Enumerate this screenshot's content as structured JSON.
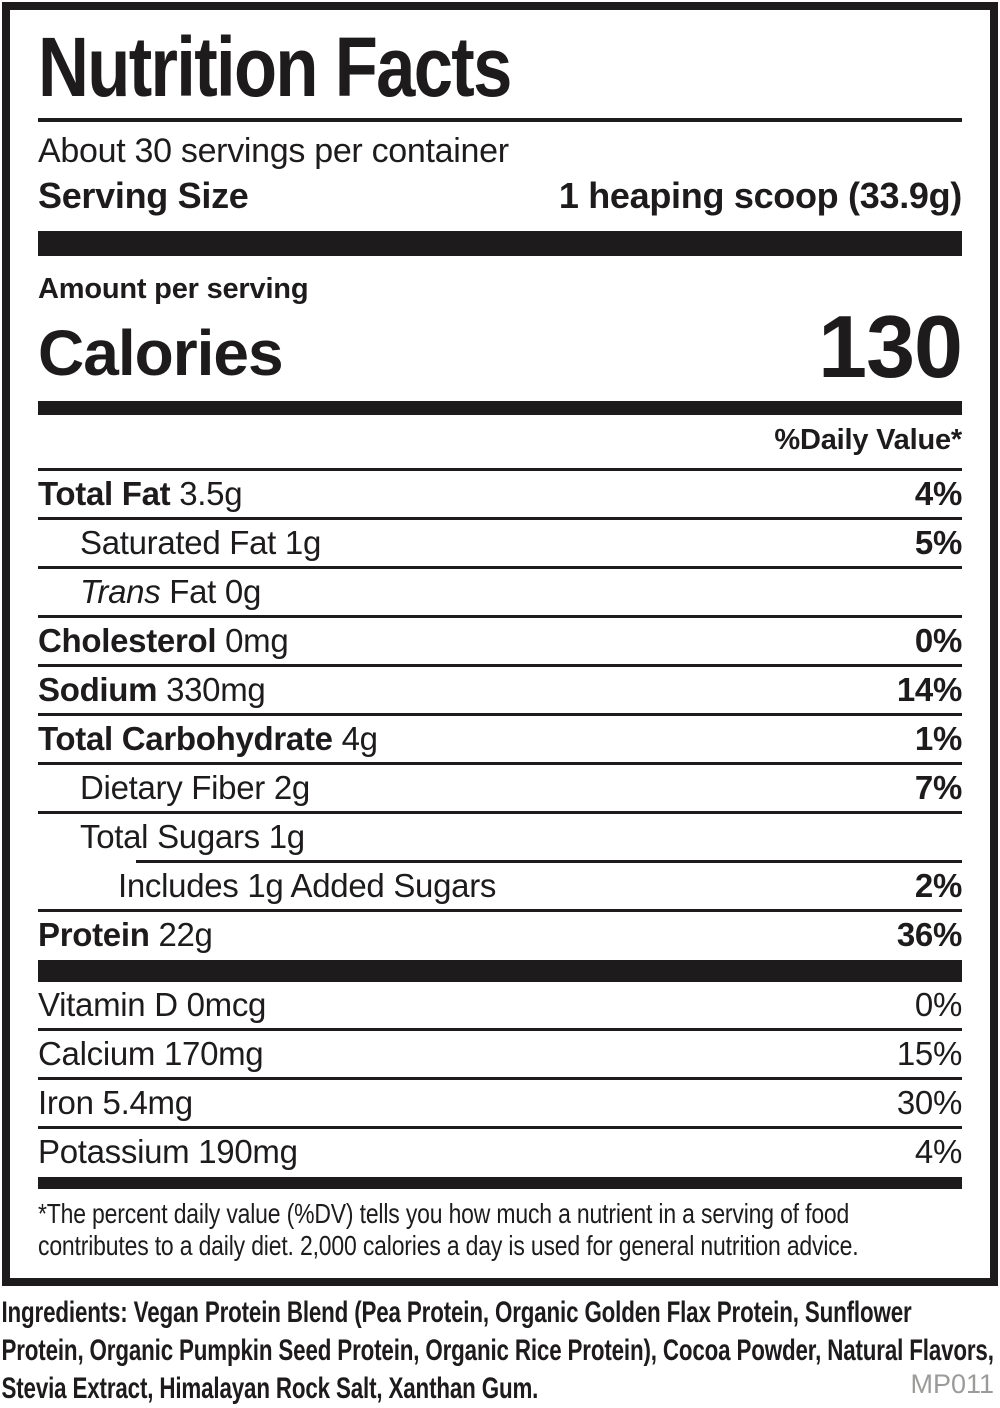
{
  "colors": {
    "ink": "#1d1b1c",
    "muted": "#9b9b9a",
    "bg": "#ffffff"
  },
  "label": {
    "title": "Nutrition Facts",
    "servings_per_container": "About 30 servings per container",
    "serving_size_label": "Serving Size",
    "serving_size_value": "1 heaping scoop (33.9g)",
    "amount_per_serving": "Amount per serving",
    "calories_label": "Calories",
    "calories_value": "130",
    "daily_value_header": "%Daily Value*",
    "nutrients": [
      {
        "parts": [
          {
            "t": "Total Fat ",
            "s": "b"
          },
          {
            "t": "3.5g",
            "s": "r"
          }
        ],
        "pct": "4%",
        "indent": 0,
        "rule": "full"
      },
      {
        "parts": [
          {
            "t": "Saturated Fat 1g",
            "s": "r"
          }
        ],
        "pct": "5%",
        "indent": 1,
        "rule": "full"
      },
      {
        "parts": [
          {
            "t": "Trans",
            "s": "i"
          },
          {
            "t": " Fat 0g",
            "s": "r"
          }
        ],
        "pct": "",
        "indent": 1,
        "rule": "full"
      },
      {
        "parts": [
          {
            "t": "Cholesterol ",
            "s": "b"
          },
          {
            "t": "0mg",
            "s": "r"
          }
        ],
        "pct": "0%",
        "indent": 0,
        "rule": "full"
      },
      {
        "parts": [
          {
            "t": "Sodium ",
            "s": "b"
          },
          {
            "t": "330mg",
            "s": "r"
          }
        ],
        "pct": "14%",
        "indent": 0,
        "rule": "full"
      },
      {
        "parts": [
          {
            "t": "Total Carbohydrate ",
            "s": "b"
          },
          {
            "t": "4g",
            "s": "r"
          }
        ],
        "pct": "1%",
        "indent": 0,
        "rule": "full"
      },
      {
        "parts": [
          {
            "t": "Dietary Fiber 2g",
            "s": "r"
          }
        ],
        "pct": "7%",
        "indent": 1,
        "rule": "full"
      },
      {
        "parts": [
          {
            "t": "Total Sugars 1g",
            "s": "r"
          }
        ],
        "pct": "",
        "indent": 1,
        "rule": "full"
      },
      {
        "parts": [
          {
            "t": "Includes 1g Added Sugars",
            "s": "r"
          }
        ],
        "pct": "2%",
        "indent": 2,
        "rule": "indent"
      },
      {
        "parts": [
          {
            "t": "Protein ",
            "s": "b"
          },
          {
            "t": "22g",
            "s": "r"
          }
        ],
        "pct": "36%",
        "indent": 0,
        "rule": "full"
      }
    ],
    "vitamins": [
      {
        "name": "Vitamin D 0mcg",
        "pct": "0%"
      },
      {
        "name": "Calcium 170mg",
        "pct": "15%"
      },
      {
        "name": "Iron 5.4mg",
        "pct": "30%"
      },
      {
        "name": "Potassium 190mg",
        "pct": "4%"
      }
    ],
    "footnote": "*The percent daily value (%DV) tells you how much a nutrient in a serving of food contributes to a daily diet. 2,000 calories a day is used for general nutrition advice."
  },
  "ingredients": "Ingredients: Vegan Protein Blend (Pea Protein, Organic Golden Flax Protein, Sunflower Protein, Organic Pumpkin Seed Protein, Organic Rice Protein), Cocoa Powder, Natural Flavors, Stevia Extract, Himalayan Rock Salt, Xanthan Gum.",
  "product_code": "MP011"
}
